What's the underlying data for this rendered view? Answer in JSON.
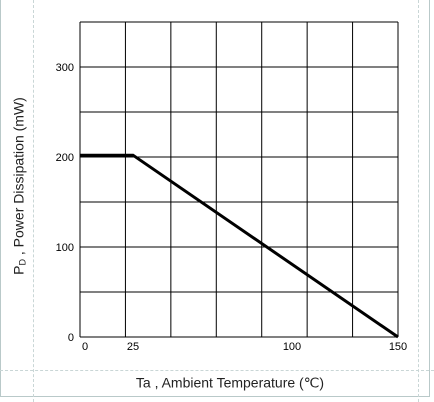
{
  "chart_data": {
    "type": "line",
    "ylabel_main": "P",
    "ylabel_sub": "D",
    "ylabel_rest": " , Power Dissipation (mW)",
    "xlabel": "Ta , Ambient Temperature (℃)",
    "xlim": [
      0,
      150
    ],
    "ylim": [
      0,
      350
    ],
    "x_ticks": [
      0,
      25,
      100,
      150
    ],
    "y_ticks": [
      0,
      100,
      200,
      300
    ],
    "grid": true,
    "series": [
      {
        "x": [
          0,
          25,
          150
        ],
        "y": [
          202,
          202,
          0
        ]
      }
    ]
  }
}
